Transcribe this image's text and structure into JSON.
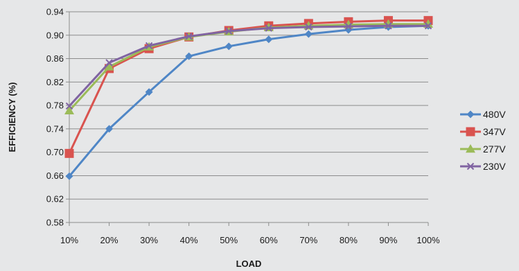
{
  "chart_data": {
    "type": "line",
    "title": "",
    "xlabel": "LOAD",
    "ylabel": "EFFICIENCY (%)",
    "categories": [
      "10%",
      "20%",
      "30%",
      "40%",
      "50%",
      "60%",
      "70%",
      "80%",
      "90%",
      "100%"
    ],
    "ylim": [
      0.58,
      0.94
    ],
    "yticks": [
      0.58,
      0.62,
      0.66,
      0.7,
      0.74,
      0.78,
      0.82,
      0.86,
      0.9,
      0.94
    ],
    "ytick_labels": [
      "0.58",
      "0.62",
      "0.66",
      "0.70",
      "0.74",
      "0.78",
      "0.82",
      "0.86",
      "0.90",
      "0.94"
    ],
    "grid": true,
    "legend": "right",
    "series": [
      {
        "name": "480V",
        "color": "#4f86c6",
        "marker": "diamond",
        "values": [
          0.659,
          0.74,
          0.803,
          0.864,
          0.881,
          0.893,
          0.902,
          0.909,
          0.914,
          0.916
        ]
      },
      {
        "name": "347V",
        "color": "#d9534f",
        "marker": "square",
        "values": [
          0.698,
          0.843,
          0.877,
          0.897,
          0.908,
          0.916,
          0.92,
          0.923,
          0.925,
          0.925
        ]
      },
      {
        "name": "277V",
        "color": "#9bbb59",
        "marker": "triangle",
        "values": [
          0.771,
          0.846,
          0.88,
          0.897,
          0.906,
          0.913,
          0.916,
          0.918,
          0.919,
          0.919
        ]
      },
      {
        "name": "230V",
        "color": "#8064a2",
        "marker": "x",
        "values": [
          0.779,
          0.853,
          0.882,
          0.898,
          0.907,
          0.912,
          0.914,
          0.915,
          0.916,
          0.916
        ]
      }
    ]
  }
}
